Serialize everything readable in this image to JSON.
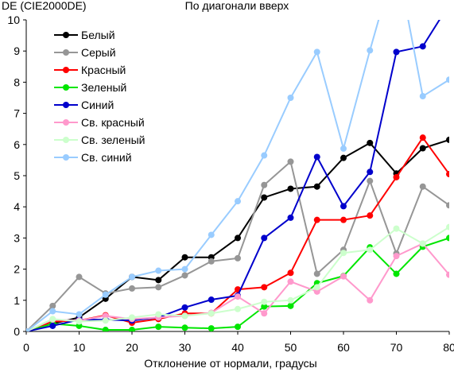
{
  "chart_data": {
    "type": "line",
    "title": "По диагонали вверх",
    "ylabel": "DE (CIE2000DE)",
    "xlabel": "Отклонение от нормали, градусы",
    "xlim": [
      0,
      80
    ],
    "ylim": [
      0,
      10
    ],
    "x_ticks": [
      0,
      10,
      20,
      30,
      40,
      50,
      60,
      70,
      80
    ],
    "y_ticks": [
      0,
      1,
      2,
      3,
      4,
      5,
      6,
      7,
      8,
      9,
      10
    ],
    "grid": false,
    "legend_position": "top-left",
    "x": [
      0,
      5,
      10,
      15,
      20,
      25,
      30,
      35,
      40,
      45,
      50,
      55,
      60,
      65,
      70,
      75,
      80
    ],
    "series": [
      {
        "name": "Белый",
        "color": "#000000",
        "values": [
          0.0,
          0.25,
          0.45,
          1.05,
          1.75,
          1.65,
          2.38,
          2.38,
          3.0,
          4.3,
          4.58,
          4.65,
          5.57,
          6.05,
          5.07,
          5.88,
          6.15
        ]
      },
      {
        "name": "Серый",
        "color": "#969696",
        "values": [
          0.0,
          0.82,
          1.75,
          1.22,
          1.38,
          1.42,
          1.8,
          2.25,
          2.35,
          4.7,
          5.45,
          1.85,
          2.62,
          4.83,
          2.5,
          4.65,
          4.05
        ]
      },
      {
        "name": "Красный",
        "color": "#ff0000",
        "values": [
          0.0,
          0.32,
          0.35,
          0.52,
          0.28,
          0.4,
          0.58,
          0.58,
          1.35,
          1.42,
          1.88,
          3.58,
          3.58,
          3.72,
          4.95,
          6.22,
          5.05
        ]
      },
      {
        "name": "Зеленый",
        "color": "#00e600",
        "values": [
          0.0,
          0.25,
          0.18,
          0.05,
          0.05,
          0.15,
          0.12,
          0.1,
          0.15,
          0.8,
          0.82,
          1.55,
          1.78,
          2.7,
          1.85,
          2.72,
          3.0
        ]
      },
      {
        "name": "Синий",
        "color": "#0000cc",
        "values": [
          0.0,
          0.18,
          0.38,
          0.38,
          0.35,
          0.45,
          0.77,
          1.02,
          1.15,
          3.0,
          3.65,
          5.6,
          4.02,
          5.12,
          8.97,
          9.15,
          10.5
        ]
      },
      {
        "name": "Св. красный",
        "color": "#ff99cc",
        "values": [
          0.0,
          0.38,
          0.35,
          0.5,
          0.4,
          0.45,
          0.5,
          0.6,
          1.12,
          0.58,
          1.6,
          1.28,
          1.77,
          1.0,
          2.42,
          2.82,
          1.82
        ]
      },
      {
        "name": "Св. зеленый",
        "color": "#ccffcc",
        "values": [
          0.0,
          0.4,
          0.32,
          0.35,
          0.45,
          0.55,
          0.5,
          0.58,
          0.72,
          0.95,
          1.0,
          1.42,
          2.52,
          2.62,
          3.3,
          2.82,
          3.35
        ]
      },
      {
        "name": "Св. синий",
        "color": "#99ccff",
        "values": [
          0.0,
          0.65,
          0.55,
          1.18,
          1.75,
          1.95,
          2.0,
          3.1,
          4.18,
          5.65,
          7.5,
          8.97,
          5.87,
          9.02,
          12.0,
          7.55,
          8.08
        ]
      }
    ]
  }
}
